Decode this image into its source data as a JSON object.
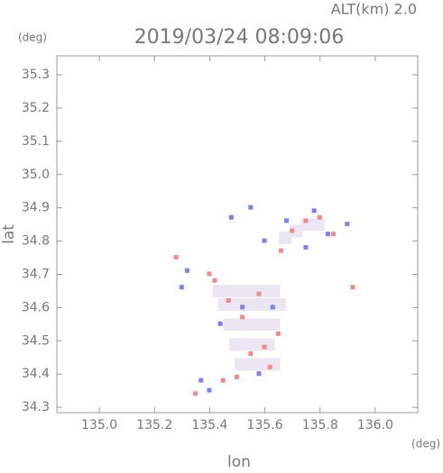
{
  "chart_data": {
    "type": "scatter",
    "title": "2019/03/24 08:09:06",
    "subtitle": "ALT(km) 2.0",
    "y_unit": "(deg)",
    "x_unit": "(deg)",
    "xlabel": "lon",
    "ylabel": "lat",
    "xlim": [
      134.846,
      136.154
    ],
    "ylim": [
      34.284,
      35.357
    ],
    "xticks": [
      {
        "value": 135,
        "label": "135.0"
      },
      135.2,
      135.4,
      135.6,
      135.8,
      {
        "value": 136,
        "label": "136.0"
      }
    ],
    "yticks": [
      34.3,
      34.4,
      34.5,
      34.6,
      34.7,
      34.8,
      34.9,
      {
        "value": 35,
        "label": "35.0"
      },
      35.1,
      35.2,
      35.3
    ],
    "series": [
      {
        "color": "#ece6f2",
        "x": [
          135.42,
          135.46,
          135.5,
          135.54,
          135.58,
          135.62,
          135.44,
          135.48,
          135.52,
          135.56,
          135.6,
          135.64,
          135.46,
          135.5,
          135.54,
          135.58,
          135.62,
          135.48,
          135.52,
          135.56,
          135.6,
          135.5,
          135.54,
          135.58,
          135.62,
          135.66,
          135.7,
          135.74,
          135.78
        ],
        "values": [
          34.66,
          34.66,
          34.66,
          34.66,
          34.66,
          34.66,
          34.62,
          34.62,
          34.62,
          34.62,
          34.62,
          34.62,
          34.56,
          34.56,
          34.56,
          34.56,
          34.56,
          34.5,
          34.5,
          34.5,
          34.5,
          34.44,
          34.44,
          34.44,
          34.44,
          34.82,
          34.84,
          34.86,
          34.86
        ]
      },
      {
        "color": "#f08a8a",
        "x": [
          135.28,
          135.92,
          135.8,
          135.75,
          135.5,
          135.45,
          135.55,
          135.6,
          135.65,
          135.4,
          135.47,
          135.52,
          135.58,
          135.35,
          135.62,
          135.7,
          135.85,
          135.66,
          135.42
        ],
        "values": [
          34.75,
          34.66,
          34.87,
          34.86,
          34.39,
          34.38,
          34.46,
          34.48,
          34.52,
          34.7,
          34.62,
          34.57,
          34.64,
          34.34,
          34.42,
          34.83,
          34.82,
          34.77,
          34.68
        ]
      },
      {
        "color": "#7f7ff0",
        "x": [
          135.37,
          135.32,
          135.55,
          135.48,
          135.68,
          135.78,
          135.83,
          135.9,
          135.52,
          135.44,
          135.63,
          135.58,
          135.4,
          135.3,
          135.75,
          135.6
        ],
        "values": [
          34.38,
          34.71,
          34.9,
          34.87,
          34.86,
          34.89,
          34.82,
          34.85,
          34.6,
          34.55,
          34.6,
          34.4,
          34.35,
          34.66,
          34.78,
          34.8
        ]
      }
    ]
  }
}
